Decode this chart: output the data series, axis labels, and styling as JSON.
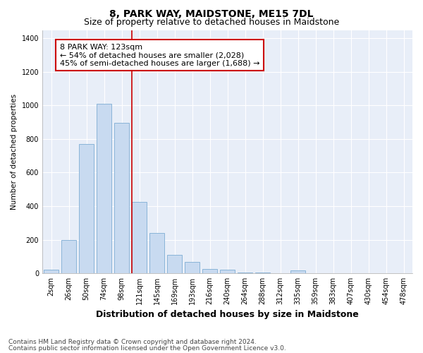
{
  "title": "8, PARK WAY, MAIDSTONE, ME15 7DL",
  "subtitle": "Size of property relative to detached houses in Maidstone",
  "xlabel": "Distribution of detached houses by size in Maidstone",
  "ylabel": "Number of detached properties",
  "categories": [
    "2sqm",
    "26sqm",
    "50sqm",
    "74sqm",
    "98sqm",
    "121sqm",
    "145sqm",
    "169sqm",
    "193sqm",
    "216sqm",
    "240sqm",
    "264sqm",
    "288sqm",
    "312sqm",
    "335sqm",
    "359sqm",
    "383sqm",
    "407sqm",
    "430sqm",
    "454sqm",
    "478sqm"
  ],
  "values": [
    22,
    200,
    770,
    1010,
    895,
    425,
    240,
    110,
    68,
    25,
    22,
    5,
    5,
    0,
    15,
    0,
    0,
    0,
    0,
    0,
    0
  ],
  "bar_color": "#c8daf0",
  "bar_edge_color": "#8ab4d8",
  "vline_color": "#cc0000",
  "vline_index": 5,
  "annotation_text": "8 PARK WAY: 123sqm\n← 54% of detached houses are smaller (2,028)\n45% of semi-detached houses are larger (1,688) →",
  "annotation_box_facecolor": "#ffffff",
  "annotation_box_edgecolor": "#cc0000",
  "ylim": [
    0,
    1450
  ],
  "yticks": [
    0,
    200,
    400,
    600,
    800,
    1000,
    1200,
    1400
  ],
  "footer_line1": "Contains HM Land Registry data © Crown copyright and database right 2024.",
  "footer_line2": "Contains public sector information licensed under the Open Government Licence v3.0.",
  "bg_color": "#e8eef8",
  "title_fontsize": 10,
  "subtitle_fontsize": 9,
  "tick_fontsize": 7,
  "xlabel_fontsize": 9,
  "ylabel_fontsize": 7.5,
  "footer_fontsize": 6.5,
  "annot_fontsize": 8
}
